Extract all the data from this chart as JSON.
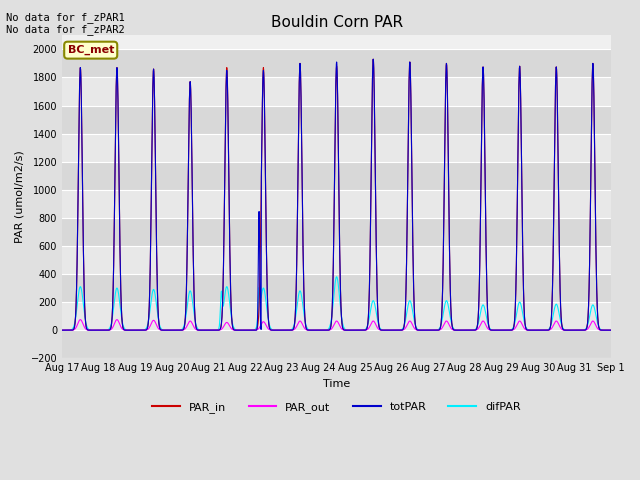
{
  "title": "Bouldin Corn PAR",
  "ylabel": "PAR (umol/m2/s)",
  "xlabel": "Time",
  "no_data_text_1": "No data for f_zPAR1",
  "no_data_text_2": "No data for f_zPAR2",
  "legend_label": "BC_met",
  "ylim": [
    -200,
    2100
  ],
  "yticks": [
    -200,
    0,
    200,
    400,
    600,
    800,
    1000,
    1200,
    1400,
    1600,
    1800,
    2000
  ],
  "xlim_days": 15,
  "color_PAR_in": "#cc0000",
  "color_PAR_out": "#ff00ff",
  "color_totPAR": "#0000cc",
  "color_difPAR": "#00eeff",
  "background_color": "#e0e0e0",
  "plot_bg_light": "#f0f0f0",
  "plot_bg_dark": "#d8d8d8",
  "grid_color": "#ffffff",
  "title_fontsize": 11,
  "label_fontsize": 8,
  "tick_fontsize": 7,
  "legend_fontsize": 8
}
